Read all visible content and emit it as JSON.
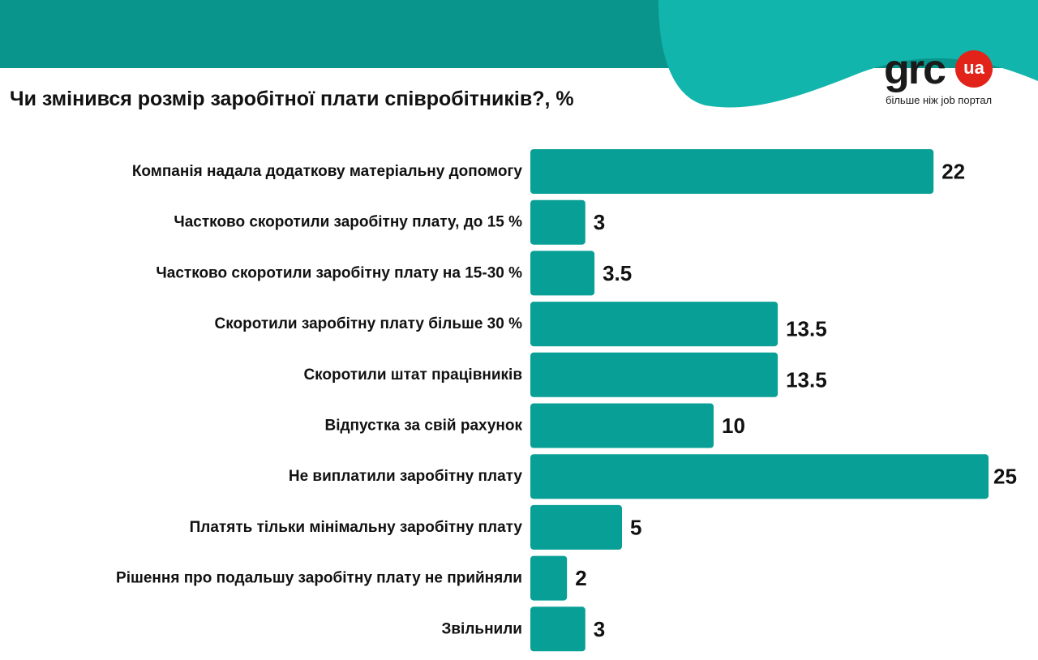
{
  "title": "Чи змінився розмір заробітної плати співробітників?, %",
  "logo": {
    "word": "grc",
    "badge": "ua",
    "tagline": "більше ніж job портал"
  },
  "colors": {
    "bar": "#089f96",
    "header_dark": "#0a958c",
    "header_light": "#12b5ac",
    "badge": "#e2231a"
  },
  "chart_data": {
    "type": "bar",
    "orientation": "horizontal",
    "title": "Чи змінився розмір заробітної плати співробітників?, %",
    "categories": [
      "Компанія надала додаткову матеріальну допомогу",
      "Частково скоротили заробітну плату, до 15 %",
      "Частково скоротили заробітну плату на 15-30 %",
      "Скоротили заробітну плату більше 30 %",
      "Скоротили штат працівників",
      "Відпустка за свій рахунок",
      "Не виплатили заробітну плату",
      "Платять тільки мінімальну заробітну плату",
      "Рішення про подальшу заробітну плату не прийняли",
      "Звільнили"
    ],
    "values": [
      22,
      3,
      3.5,
      13.5,
      13.5,
      10,
      25,
      5,
      2,
      3
    ],
    "value_labels": [
      "22",
      "3",
      "3.5",
      "13.5",
      "13.5",
      "10",
      "25",
      "5",
      "2",
      "3"
    ],
    "xlim": [
      0,
      25
    ],
    "grid": false,
    "legend": "none"
  }
}
